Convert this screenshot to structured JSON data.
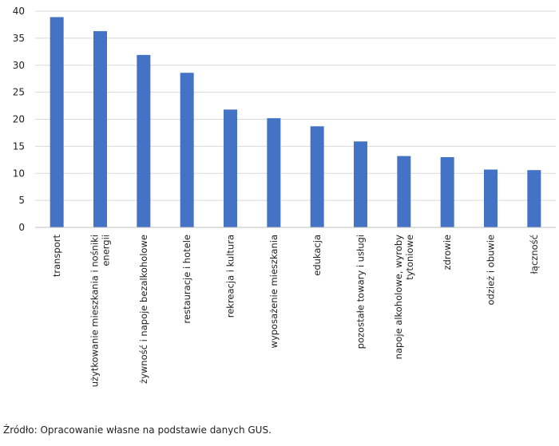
{
  "chart_data": {
    "type": "bar",
    "categories": [
      "transport",
      "użytkowanie mieszkania i nośniki energii",
      "żywność i napoje bezalkoholowe",
      "restauracje i hotele",
      "rekreacja i kultura",
      "wyposażenie mieszkania",
      "edukacja",
      "pozostałe towary i usługi",
      "napoje alkoholowe, wyroby tytoniowe",
      "zdrowie",
      "odzież i obuwie",
      "łączność"
    ],
    "category_lines": [
      [
        "transport"
      ],
      [
        "użytkowanie mieszkania i nośniki",
        "energii"
      ],
      [
        "żywność i napoje bezalkoholowe"
      ],
      [
        "restauracje i hotele"
      ],
      [
        "rekreacja i kultura"
      ],
      [
        "wyposażenie mieszkania"
      ],
      [
        "edukacja"
      ],
      [
        "pozostałe towary i usługi"
      ],
      [
        "napoje alkoholowe, wyroby",
        "tytoniowe"
      ],
      [
        "zdrowie"
      ],
      [
        "odzież i obuwie"
      ],
      [
        "łączność"
      ]
    ],
    "values": [
      38.9,
      36.3,
      31.9,
      28.6,
      21.8,
      20.2,
      18.7,
      15.9,
      13.2,
      13.0,
      10.7,
      10.6
    ],
    "ylim": [
      0,
      40
    ],
    "yticks": [
      0,
      5,
      10,
      15,
      20,
      25,
      30,
      35,
      40
    ],
    "grid": true,
    "bar_color": "#4472C4",
    "grid_color": "#d9d9d9",
    "title": "",
    "xlabel": "",
    "ylabel": ""
  },
  "footer": {
    "source": "Źródło: Opracowanie własne na podstawie danych GUS."
  }
}
